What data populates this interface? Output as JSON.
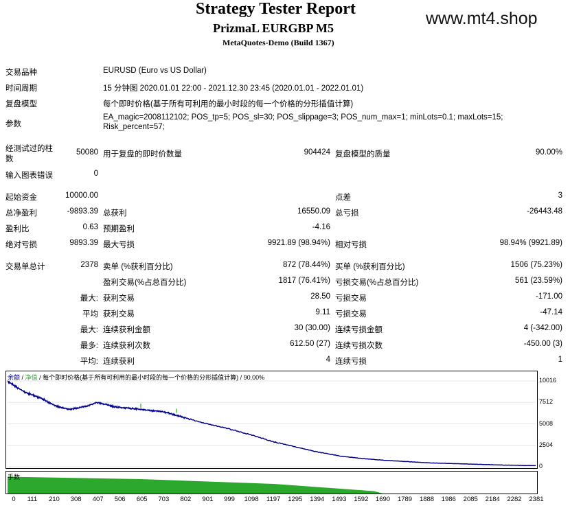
{
  "header": {
    "title": "Strategy Tester Report",
    "subtitle": "PrizmaL EURGBP M5",
    "build": "MetaQuotes-Demo (Build 1367)",
    "watermark": "www.mt4.shop"
  },
  "info": {
    "symbol_label": "交易品种",
    "symbol_value": "EURUSD (Euro vs US Dollar)",
    "period_label": "时间周期",
    "period_value": "15 分钟图 2020.01.01 22:00 - 2021.12.30 23:45 (2020.01.01 - 2022.01.01)",
    "model_label": "复盘模型",
    "model_value": "每个即时价格(基于所有可利用的最小时段的每一个价格的分形插值计算)",
    "params_label": "参数",
    "params_line1": "EA_magic=2008112102; POS_tp=5; POS_sl=30; POS_slippage=3; POS_num_max=1; minLots=0.1; maxLots=15;",
    "params_line2": "Risk_percent=57;"
  },
  "bars": {
    "bars_label_1": "经测试过的柱",
    "bars_label_2": "数",
    "bars_value": "50080",
    "ticks_label": "用于复盘的即时价数量",
    "ticks_value": "904424",
    "quality_label": "复盘模型的质量",
    "quality_value": "90.00%",
    "errors_label": "输入图表错误",
    "errors_value": "0"
  },
  "stats": {
    "deposit_label": "起始资金",
    "deposit_value": "10000.00",
    "spread_label": "点差",
    "spread_value": "3",
    "net_label": "总净盈利",
    "net_value": "-9893.39",
    "gross_profit_label": "总获利",
    "gross_profit_value": "16550.09",
    "gross_loss_label": "总亏损",
    "gross_loss_value": "-26443.48",
    "pf_label": "盈利比",
    "pf_value": "0.63",
    "payoff_label": "预期盈利",
    "payoff_value": "-4.16",
    "abs_dd_label": "绝对亏损",
    "abs_dd_value": "9893.39",
    "max_dd_label": "最大亏损",
    "max_dd_value": "9921.89 (98.94%)",
    "rel_dd_label": "相对亏损",
    "rel_dd_value": "98.94% (9921.89)",
    "total_trades_label": "交易单总计",
    "total_trades_value": "2378",
    "short_label": "卖单 (%获利百分比)",
    "short_value": "872 (78.44%)",
    "long_label": "买单 (%获利百分比)",
    "long_value": "1506 (75.23%)",
    "profit_trades_label": "盈利交易(%占总百分比)",
    "profit_trades_value": "1817 (76.41%)",
    "loss_trades_label": "亏损交易(%占总百分比)",
    "loss_trades_value": "561 (23.59%)",
    "largest_prefix": "最大:",
    "largest_profit_label": "获利交易",
    "largest_profit_value": "28.50",
    "largest_loss_label": "亏损交易",
    "largest_loss_value": "-171.00",
    "average_prefix": "平均",
    "avg_profit_label": "获利交易",
    "avg_profit_value": "9.11",
    "avg_loss_label": "亏损交易",
    "avg_loss_value": "-47.14",
    "max_prefix": "最大:",
    "max_cons_wins_label": "连续获利金额",
    "max_cons_wins_value": "30 (30.00)",
    "max_cons_losses_label": "连续亏损金额",
    "max_cons_losses_value": "4 (-342.00)",
    "maximal_prefix": "最多:",
    "maximal_cons_profit_label": "连续获利次数",
    "maximal_cons_profit_value": "612.50 (27)",
    "maximal_cons_loss_label": "连续亏损次数",
    "maximal_cons_loss_value": "-450.00 (3)",
    "avg2_prefix": "平均:",
    "avg_cons_wins_label": "连续获利",
    "avg_cons_wins_value": "4",
    "avg_cons_losses_label": "连续亏损",
    "avg_cons_losses_value": "1"
  },
  "chart_data": {
    "type": "line",
    "legend_balance": "余额",
    "legend_equity": "净值",
    "legend_rest": "/ 每个即时价格(基于所有可利用的最小时段的每一个价格的分形插值计算) / 90.00%",
    "volume_label": "手数",
    "ylim": [
      0,
      10016
    ],
    "y_ticks": [
      "10016",
      "7512",
      "5008",
      "2504",
      "0"
    ],
    "x_ticks": [
      "0",
      "111",
      "210",
      "308",
      "407",
      "506",
      "605",
      "703",
      "802",
      "901",
      "999",
      "1098",
      "1197",
      "1295",
      "1394",
      "1493",
      "1592",
      "1690",
      "1789",
      "1888",
      "1986",
      "2085",
      "2184",
      "2282",
      "2381"
    ],
    "xlim": [
      0,
      2378
    ],
    "balance_x": [
      0,
      40,
      80,
      120,
      160,
      200,
      240,
      280,
      320,
      360,
      400,
      440,
      480,
      520,
      560,
      600,
      640,
      680,
      720,
      760,
      800,
      900,
      1000,
      1100,
      1200,
      1300,
      1400,
      1500,
      1600,
      1700,
      1800,
      1900,
      2000,
      2100,
      2200,
      2300,
      2378
    ],
    "balance_y": [
      10016,
      9300,
      8700,
      8300,
      7900,
      7300,
      6900,
      6700,
      6900,
      7100,
      7500,
      7300,
      7000,
      6900,
      6800,
      6700,
      6550,
      6500,
      6300,
      6000,
      5700,
      5000,
      4400,
      3700,
      2900,
      2300,
      1700,
      1250,
      950,
      750,
      600,
      450,
      380,
      300,
      220,
      160,
      140
    ],
    "volume_color": "#2ca82c",
    "balance_color": "#00008b",
    "volume_x": [
      0,
      300,
      600,
      900,
      1200,
      1500,
      1650,
      1690,
      2378
    ],
    "volume_y": [
      14,
      13,
      12,
      10,
      8,
      4,
      2,
      0,
      0
    ]
  }
}
